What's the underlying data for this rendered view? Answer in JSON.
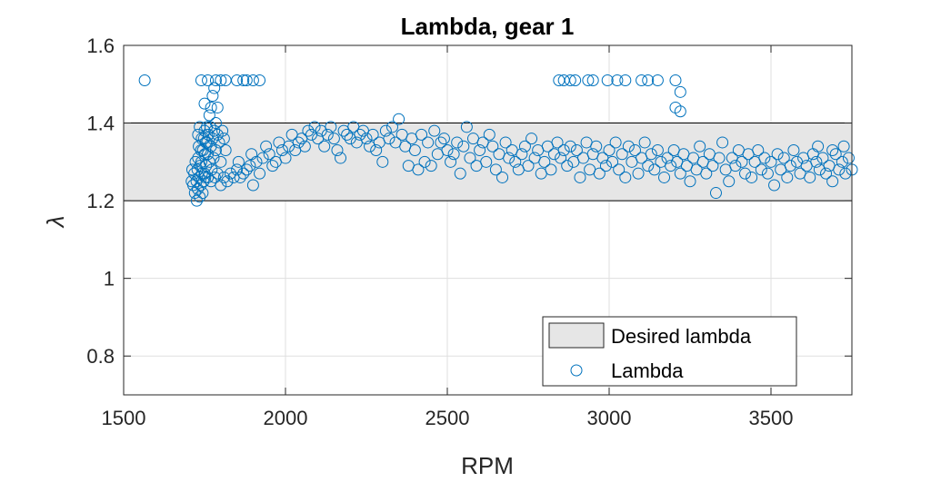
{
  "chart_data": {
    "type": "scatter",
    "title": "Lambda, gear 1",
    "xlabel": "RPM",
    "ylabel": "λ",
    "xlim": [
      1500,
      3750
    ],
    "ylim": [
      0.7,
      1.6
    ],
    "xticks": [
      1500,
      2000,
      2500,
      3000,
      3500
    ],
    "xtick_labels": [
      "1500",
      "2000",
      "2500",
      "3000",
      "3500"
    ],
    "yticks": [
      0.8,
      1.0,
      1.2,
      1.4,
      1.6
    ],
    "ytick_labels": [
      "0.8",
      "1",
      "1.2",
      "1.4",
      "1.6"
    ],
    "grid": true,
    "legend_placement": "bottom-right",
    "band": {
      "name": "Desired lambda",
      "ymin": 1.2,
      "ymax": 1.4,
      "color": "#e6e6e6"
    },
    "series": [
      {
        "name": "Lambda",
        "color": "#0072bd",
        "marker": "open-circle",
        "points": [
          [
            1565,
            1.51
          ],
          [
            1740,
            1.51
          ],
          [
            1760,
            1.51
          ],
          [
            1785,
            1.51
          ],
          [
            1800,
            1.51
          ],
          [
            1815,
            1.51
          ],
          [
            1850,
            1.51
          ],
          [
            1870,
            1.51
          ],
          [
            1880,
            1.51
          ],
          [
            1900,
            1.51
          ],
          [
            1920,
            1.51
          ],
          [
            1750,
            1.45
          ],
          [
            1765,
            1.42
          ],
          [
            1775,
            1.47
          ],
          [
            1780,
            1.49
          ],
          [
            1790,
            1.44
          ],
          [
            1770,
            1.44
          ],
          [
            1785,
            1.4
          ],
          [
            1720,
            1.22
          ],
          [
            1725,
            1.25
          ],
          [
            1728,
            1.28
          ],
          [
            1730,
            1.31
          ],
          [
            1732,
            1.34
          ],
          [
            1735,
            1.21
          ],
          [
            1738,
            1.24
          ],
          [
            1740,
            1.3
          ],
          [
            1742,
            1.27
          ],
          [
            1745,
            1.33
          ],
          [
            1748,
            1.36
          ],
          [
            1750,
            1.38
          ],
          [
            1752,
            1.26
          ],
          [
            1755,
            1.29
          ],
          [
            1758,
            1.35
          ],
          [
            1760,
            1.32
          ],
          [
            1762,
            1.37
          ],
          [
            1765,
            1.3
          ],
          [
            1768,
            1.39
          ],
          [
            1770,
            1.34
          ],
          [
            1772,
            1.28
          ],
          [
            1775,
            1.36
          ],
          [
            1778,
            1.31
          ],
          [
            1780,
            1.38
          ],
          [
            1782,
            1.26
          ],
          [
            1785,
            1.33
          ],
          [
            1790,
            1.37
          ],
          [
            1795,
            1.35
          ],
          [
            1800,
            1.3
          ],
          [
            1805,
            1.38
          ],
          [
            1810,
            1.36
          ],
          [
            1815,
            1.33
          ],
          [
            1715,
            1.24
          ],
          [
            1718,
            1.27
          ],
          [
            1722,
            1.3
          ],
          [
            1726,
            1.2
          ],
          [
            1729,
            1.23
          ],
          [
            1733,
            1.26
          ],
          [
            1736,
            1.29
          ],
          [
            1739,
            1.33
          ],
          [
            1744,
            1.22
          ],
          [
            1747,
            1.25
          ],
          [
            1751,
            1.32
          ],
          [
            1754,
            1.35
          ],
          [
            1757,
            1.39
          ],
          [
            1712,
            1.28
          ],
          [
            1710,
            1.25
          ],
          [
            1730,
            1.37
          ],
          [
            1735,
            1.39
          ],
          [
            1741,
            1.36
          ],
          [
            1750,
            1.27
          ],
          [
            1760,
            1.26
          ],
          [
            1770,
            1.25
          ],
          [
            1790,
            1.27
          ],
          [
            1810,
            1.26
          ],
          [
            1830,
            1.27
          ],
          [
            1850,
            1.28
          ],
          [
            1870,
            1.27
          ],
          [
            1890,
            1.29
          ],
          [
            1910,
            1.3
          ],
          [
            1930,
            1.31
          ],
          [
            1950,
            1.32
          ],
          [
            1970,
            1.3
          ],
          [
            1990,
            1.33
          ],
          [
            1820,
            1.25
          ],
          [
            1840,
            1.26
          ],
          [
            1860,
            1.26
          ],
          [
            1880,
            1.28
          ],
          [
            1900,
            1.24
          ],
          [
            1920,
            1.27
          ],
          [
            1940,
            1.34
          ],
          [
            1960,
            1.29
          ],
          [
            1980,
            1.35
          ],
          [
            1800,
            1.24
          ],
          [
            1855,
            1.3
          ],
          [
            1895,
            1.32
          ],
          [
            2000,
            1.31
          ],
          [
            2010,
            1.34
          ],
          [
            2020,
            1.37
          ],
          [
            2030,
            1.33
          ],
          [
            2040,
            1.35
          ],
          [
            2050,
            1.36
          ],
          [
            2060,
            1.34
          ],
          [
            2070,
            1.38
          ],
          [
            2080,
            1.37
          ],
          [
            2090,
            1.39
          ],
          [
            2100,
            1.36
          ],
          [
            2110,
            1.38
          ],
          [
            2120,
            1.34
          ],
          [
            2130,
            1.37
          ],
          [
            2140,
            1.39
          ],
          [
            2150,
            1.36
          ],
          [
            2160,
            1.33
          ],
          [
            2170,
            1.31
          ],
          [
            2180,
            1.38
          ],
          [
            2190,
            1.37
          ],
          [
            2200,
            1.36
          ],
          [
            2210,
            1.39
          ],
          [
            2220,
            1.35
          ],
          [
            2230,
            1.37
          ],
          [
            2240,
            1.38
          ],
          [
            2250,
            1.36
          ],
          [
            2260,
            1.34
          ],
          [
            2270,
            1.37
          ],
          [
            2280,
            1.33
          ],
          [
            2290,
            1.35
          ],
          [
            2300,
            1.3
          ],
          [
            2310,
            1.38
          ],
          [
            2320,
            1.36
          ],
          [
            2330,
            1.39
          ],
          [
            2340,
            1.35
          ],
          [
            2350,
            1.41
          ],
          [
            2360,
            1.37
          ],
          [
            2370,
            1.34
          ],
          [
            2380,
            1.29
          ],
          [
            2390,
            1.36
          ],
          [
            2400,
            1.33
          ],
          [
            2410,
            1.28
          ],
          [
            2420,
            1.37
          ],
          [
            2430,
            1.3
          ],
          [
            2440,
            1.35
          ],
          [
            2450,
            1.29
          ],
          [
            2460,
            1.38
          ],
          [
            2470,
            1.32
          ],
          [
            2480,
            1.35
          ],
          [
            2490,
            1.36
          ],
          [
            2500,
            1.33
          ],
          [
            2510,
            1.3
          ],
          [
            2520,
            1.32
          ],
          [
            2530,
            1.35
          ],
          [
            2540,
            1.27
          ],
          [
            2550,
            1.34
          ],
          [
            2560,
            1.39
          ],
          [
            2570,
            1.31
          ],
          [
            2580,
            1.36
          ],
          [
            2590,
            1.29
          ],
          [
            2600,
            1.33
          ],
          [
            2610,
            1.35
          ],
          [
            2620,
            1.3
          ],
          [
            2630,
            1.37
          ],
          [
            2640,
            1.34
          ],
          [
            2650,
            1.28
          ],
          [
            2660,
            1.32
          ],
          [
            2670,
            1.26
          ],
          [
            2680,
            1.35
          ],
          [
            2690,
            1.31
          ],
          [
            2700,
            1.33
          ],
          [
            2710,
            1.3
          ],
          [
            2720,
            1.28
          ],
          [
            2730,
            1.32
          ],
          [
            2740,
            1.34
          ],
          [
            2750,
            1.29
          ],
          [
            2760,
            1.36
          ],
          [
            2770,
            1.31
          ],
          [
            2780,
            1.33
          ],
          [
            2790,
            1.27
          ],
          [
            2800,
            1.3
          ],
          [
            2810,
            1.34
          ],
          [
            2820,
            1.28
          ],
          [
            2830,
            1.32
          ],
          [
            2840,
            1.35
          ],
          [
            2850,
            1.31
          ],
          [
            2860,
            1.33
          ],
          [
            2870,
            1.29
          ],
          [
            2880,
            1.34
          ],
          [
            2890,
            1.3
          ],
          [
            2900,
            1.33
          ],
          [
            2910,
            1.26
          ],
          [
            2920,
            1.31
          ],
          [
            2930,
            1.35
          ],
          [
            2940,
            1.28
          ],
          [
            2950,
            1.32
          ],
          [
            2960,
            1.34
          ],
          [
            2970,
            1.27
          ],
          [
            2980,
            1.31
          ],
          [
            2990,
            1.29
          ],
          [
            3000,
            1.33
          ],
          [
            3010,
            1.3
          ],
          [
            3020,
            1.35
          ],
          [
            3030,
            1.28
          ],
          [
            3040,
            1.32
          ],
          [
            3050,
            1.26
          ],
          [
            3060,
            1.34
          ],
          [
            3070,
            1.3
          ],
          [
            3080,
            1.33
          ],
          [
            3090,
            1.27
          ],
          [
            3100,
            1.31
          ],
          [
            3110,
            1.35
          ],
          [
            3120,
            1.29
          ],
          [
            3130,
            1.32
          ],
          [
            3140,
            1.28
          ],
          [
            3150,
            1.33
          ],
          [
            3160,
            1.3
          ],
          [
            3170,
            1.26
          ],
          [
            3180,
            1.31
          ],
          [
            3190,
            1.29
          ],
          [
            3200,
            1.33
          ],
          [
            3210,
            1.3
          ],
          [
            3220,
            1.27
          ],
          [
            3230,
            1.32
          ],
          [
            3240,
            1.29
          ],
          [
            3250,
            1.25
          ],
          [
            3260,
            1.31
          ],
          [
            3270,
            1.28
          ],
          [
            3280,
            1.34
          ],
          [
            3290,
            1.3
          ],
          [
            3300,
            1.27
          ],
          [
            3310,
            1.32
          ],
          [
            3320,
            1.29
          ],
          [
            3330,
            1.22
          ],
          [
            3340,
            1.31
          ],
          [
            3350,
            1.35
          ],
          [
            3360,
            1.28
          ],
          [
            3370,
            1.25
          ],
          [
            3380,
            1.31
          ],
          [
            3390,
            1.29
          ],
          [
            3400,
            1.33
          ],
          [
            3410,
            1.3
          ],
          [
            3420,
            1.27
          ],
          [
            3430,
            1.32
          ],
          [
            3440,
            1.26
          ],
          [
            3450,
            1.3
          ],
          [
            3460,
            1.33
          ],
          [
            3470,
            1.28
          ],
          [
            3480,
            1.31
          ],
          [
            3490,
            1.27
          ],
          [
            3500,
            1.3
          ],
          [
            3510,
            1.24
          ],
          [
            3520,
            1.32
          ],
          [
            3530,
            1.28
          ],
          [
            3540,
            1.31
          ],
          [
            3550,
            1.26
          ],
          [
            3560,
            1.29
          ],
          [
            3570,
            1.33
          ],
          [
            3580,
            1.3
          ],
          [
            3590,
            1.27
          ],
          [
            3600,
            1.31
          ],
          [
            3610,
            1.29
          ],
          [
            3620,
            1.26
          ],
          [
            3630,
            1.32
          ],
          [
            3640,
            1.3
          ],
          [
            3650,
            1.28
          ],
          [
            3660,
            1.31
          ],
          [
            3670,
            1.27
          ],
          [
            3680,
            1.29
          ],
          [
            3690,
            1.25
          ],
          [
            3700,
            1.32
          ],
          [
            3710,
            1.28
          ],
          [
            3720,
            1.3
          ],
          [
            3730,
            1.27
          ],
          [
            3740,
            1.31
          ],
          [
            3750,
            1.28
          ],
          [
            3725,
            1.34
          ],
          [
            3690,
            1.33
          ],
          [
            3645,
            1.34
          ],
          [
            2845,
            1.51
          ],
          [
            2860,
            1.51
          ],
          [
            2880,
            1.51
          ],
          [
            2895,
            1.51
          ],
          [
            2935,
            1.51
          ],
          [
            2950,
            1.51
          ],
          [
            2995,
            1.51
          ],
          [
            3025,
            1.51
          ],
          [
            3050,
            1.51
          ],
          [
            3100,
            1.51
          ],
          [
            3120,
            1.51
          ],
          [
            3150,
            1.51
          ],
          [
            3205,
            1.51
          ],
          [
            3220,
            1.48
          ],
          [
            3205,
            1.44
          ],
          [
            3220,
            1.43
          ]
        ]
      }
    ]
  }
}
